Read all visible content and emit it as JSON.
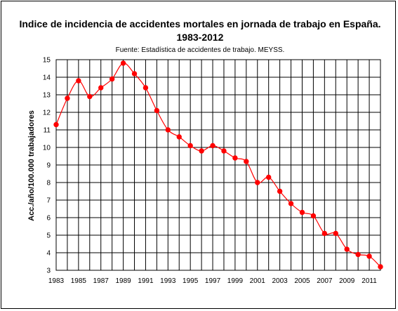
{
  "chart_data": {
    "type": "line",
    "title": "Indice de incidencia de accidentes mortales en jornada de trabajo en España.",
    "title_line2": "1983-2012",
    "subtitle": "Fuente: Estadística de accidentes de trabajo. MEYSS.",
    "xlabel": "",
    "ylabel": "Acc./año/100.000 trabajadores",
    "xlim": [
      1983,
      2012
    ],
    "ylim": [
      3,
      15
    ],
    "grid": true,
    "x_tick_labels": [
      "1983",
      "1985",
      "1987",
      "1989",
      "1991",
      "1993",
      "1995",
      "1997",
      "1999",
      "2001",
      "2003",
      "2005",
      "2007",
      "2009",
      "2011"
    ],
    "y_tick_labels": [
      "3",
      "4",
      "5",
      "6",
      "7",
      "8",
      "9",
      "10",
      "11",
      "12",
      "13",
      "14",
      "15"
    ],
    "series": [
      {
        "color": "#ff0000",
        "x": [
          1983,
          1984,
          1985,
          1986,
          1987,
          1988,
          1989,
          1990,
          1991,
          1992,
          1993,
          1994,
          1995,
          1996,
          1997,
          1998,
          1999,
          2000,
          2001,
          2002,
          2003,
          2004,
          2005,
          2006,
          2007,
          2008,
          2009,
          2010,
          2011,
          2012
        ],
        "values": [
          11.3,
          12.8,
          13.8,
          12.9,
          13.4,
          13.9,
          14.8,
          14.2,
          13.4,
          12.1,
          11.0,
          10.6,
          10.1,
          9.8,
          10.1,
          9.8,
          9.4,
          9.2,
          8.0,
          8.3,
          7.5,
          6.8,
          6.3,
          6.1,
          5.1,
          5.1,
          4.2,
          3.9,
          3.8,
          3.2
        ]
      }
    ]
  }
}
